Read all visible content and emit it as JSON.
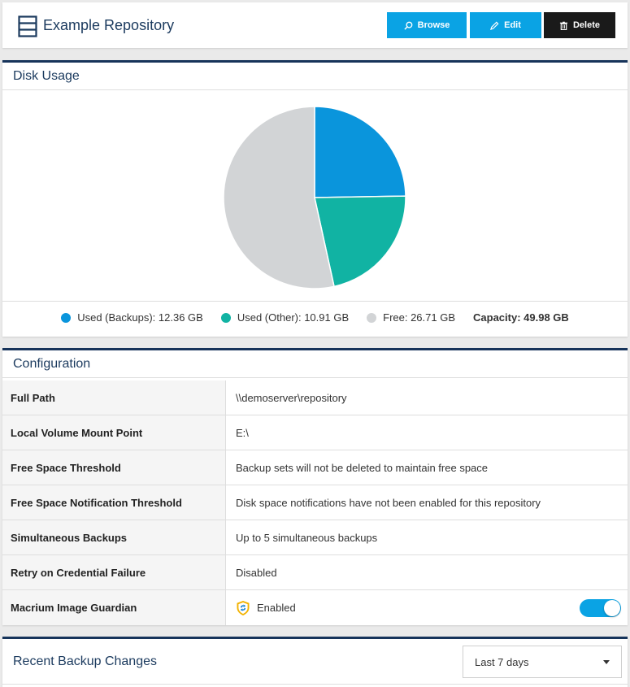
{
  "header": {
    "title": "Example Repository",
    "browse_label": "Browse",
    "edit_label": "Edit",
    "delete_label": "Delete",
    "icons": {
      "repo": "repository-icon",
      "browse": "search-icon",
      "edit": "pencil-icon",
      "delete": "trash-icon"
    },
    "colors": {
      "accent": "#0aa3e4",
      "dark": "#1a1a1a",
      "title": "#1b3a5e"
    }
  },
  "disk_usage": {
    "title": "Disk Usage",
    "legend": [
      {
        "label": "Used (Backups): 12.36 GB",
        "color": "#0a95dc"
      },
      {
        "label": "Used (Other): 10.91 GB",
        "color": "#11b3a3"
      },
      {
        "label": "Free: 26.71 GB",
        "color": "#d2d4d6"
      }
    ],
    "capacity_label": "Capacity: 49.98 GB"
  },
  "chart_data": {
    "type": "pie",
    "categories": [
      "Used (Backups)",
      "Used (Other)",
      "Free"
    ],
    "values": [
      12.36,
      10.91,
      26.71
    ],
    "colors": [
      "#0a95dc",
      "#11b3a3",
      "#d2d4d6"
    ],
    "unit": "GB",
    "legend": "bottom",
    "title": ""
  },
  "configuration": {
    "title": "Configuration",
    "rows": [
      {
        "label": "Full Path",
        "value": "\\\\demoserver\\repository"
      },
      {
        "label": "Local Volume Mount Point",
        "value": "E:\\"
      },
      {
        "label": "Free Space Threshold",
        "value": "Backup sets will not be deleted to maintain free space"
      },
      {
        "label": "Free Space Notification Threshold",
        "value": "Disk space notifications have not been enabled for this repository"
      },
      {
        "label": "Simultaneous Backups",
        "value": "Up to 5 simultaneous backups"
      },
      {
        "label": "Retry on Credential Failure",
        "value": "Disabled"
      },
      {
        "label": "Macrium Image Guardian",
        "value": "Enabled",
        "icon": "shield-icon",
        "toggle_on": true
      }
    ]
  },
  "recent": {
    "title": "Recent Backup Changes",
    "range_selected": "Last 7 days"
  }
}
